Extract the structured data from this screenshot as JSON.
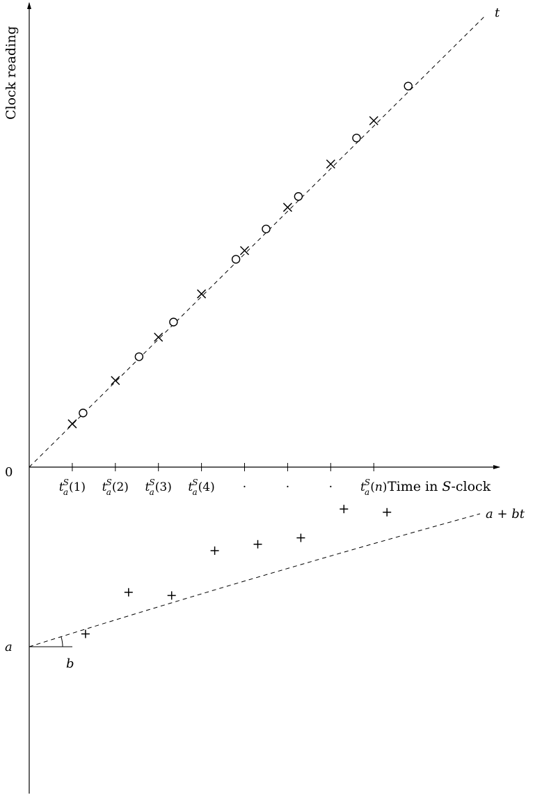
{
  "figure": {
    "y_axis_label": "Clock reading",
    "origin_label": "0",
    "upper_line_label": "t",
    "x_axis_label_prefix": "Time in ",
    "x_axis_label_var": "S",
    "x_axis_label_suffix": "-clock",
    "x_ticks": [
      {
        "base": "t",
        "sub": "a",
        "sup": "S",
        "arg": "(1)"
      },
      {
        "base": "t",
        "sub": "a",
        "sup": "S",
        "arg": "(2)"
      },
      {
        "base": "t",
        "sub": "a",
        "sup": "S",
        "arg": "(3)"
      },
      {
        "base": "t",
        "sub": "a",
        "sup": "S",
        "arg": "(4)"
      },
      {
        "dot": "·"
      },
      {
        "dot": "·"
      },
      {
        "dot": "·"
      },
      {
        "base": "t",
        "sub": "a",
        "sup": "S",
        "arg": "(n)"
      }
    ],
    "lower_line_label": "a + bt",
    "intercept_label": "a",
    "slope_label": "b",
    "colors": {
      "ink": "#000000",
      "background": "#ffffff"
    }
  },
  "chart_data": {
    "type": "scatter",
    "upper_panel": {
      "reference_line": "t",
      "series": [
        {
          "marker": "x",
          "values": [
            1,
            2,
            3,
            4,
            5,
            6,
            7,
            8
          ]
        },
        {
          "marker": "o",
          "values": [
            1.25,
            2.55,
            3.35,
            4.8,
            5.5,
            6.25,
            7.6,
            8.8
          ]
        }
      ]
    },
    "lower_panel": {
      "reference_line": "a + bt",
      "series": [
        {
          "marker": "+",
          "values": [
            0.4,
            1.7,
            1.6,
            3.0,
            3.2,
            3.4,
            4.3,
            4.2
          ]
        }
      ]
    }
  }
}
